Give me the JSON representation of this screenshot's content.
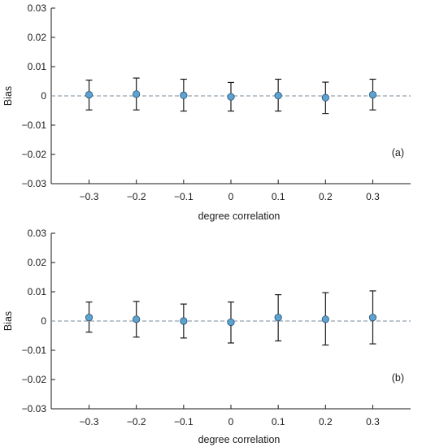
{
  "chart_data": [
    {
      "type": "scatter",
      "panel_label": "(a)",
      "xlabel": "degree correlation",
      "ylabel": "Bias",
      "x": [
        -0.3,
        -0.2,
        -0.1,
        0,
        0.1,
        0.2,
        0.3
      ],
      "x_tick_labels": [
        "−0.3",
        "−0.2",
        "−0.1",
        "0",
        "0.1",
        "0.2",
        "0.3"
      ],
      "y_tick_labels": [
        "−0.03",
        "−0.02",
        "−0.01",
        "0",
        "0.01",
        "0.02",
        "0.03"
      ],
      "y_ticks": [
        -0.03,
        -0.02,
        -0.01,
        0,
        0.01,
        0.02,
        0.03
      ],
      "xlim": [
        -0.38,
        0.38
      ],
      "ylim": [
        -0.03,
        0.03
      ],
      "series": [
        {
          "values": [
            0.0004,
            0.0006,
            0.0002,
            -0.0003,
            0.0001,
            -0.0006,
            0.0004
          ],
          "error_lower": [
            -0.0048,
            -0.0048,
            -0.0052,
            -0.0052,
            -0.0052,
            -0.006,
            -0.0048
          ],
          "error_upper": [
            0.0054,
            0.0061,
            0.0057,
            0.0046,
            0.0057,
            0.0047,
            0.0057
          ]
        }
      ],
      "reference_line": {
        "y": 0,
        "style": "dashed"
      },
      "grid": false,
      "marker_color": "#5ba3d0",
      "errorbar_color": "#1a1a1a",
      "reference_color": "#7a8a99"
    },
    {
      "type": "scatter",
      "panel_label": "(b)",
      "xlabel": "degree correlation",
      "ylabel": "Bias",
      "x": [
        -0.3,
        -0.2,
        -0.1,
        0,
        0.1,
        0.2,
        0.3
      ],
      "x_tick_labels": [
        "−0.3",
        "−0.2",
        "−0.1",
        "0",
        "0.1",
        "0.2",
        "0.3"
      ],
      "y_tick_labels": [
        "−0.03",
        "−0.02",
        "−0.01",
        "0",
        "0.01",
        "0.02",
        "0.03"
      ],
      "y_ticks": [
        -0.03,
        -0.02,
        -0.01,
        0,
        0.01,
        0.02,
        0.03
      ],
      "xlim": [
        -0.38,
        0.38
      ],
      "ylim": [
        -0.03,
        0.03
      ],
      "series": [
        {
          "values": [
            0.0012,
            0.0006,
            0.0,
            -0.0004,
            0.0012,
            0.0006,
            0.0012
          ],
          "error_lower": [
            -0.0038,
            -0.0055,
            -0.0058,
            -0.0075,
            -0.0068,
            -0.0082,
            -0.0078
          ],
          "error_upper": [
            0.0065,
            0.0067,
            0.0058,
            0.0065,
            0.009,
            0.0097,
            0.0103
          ]
        }
      ],
      "reference_line": {
        "y": 0,
        "style": "dashed"
      },
      "grid": false,
      "marker_color": "#5ba3d0",
      "errorbar_color": "#1a1a1a",
      "reference_color": "#7a8a99"
    }
  ]
}
